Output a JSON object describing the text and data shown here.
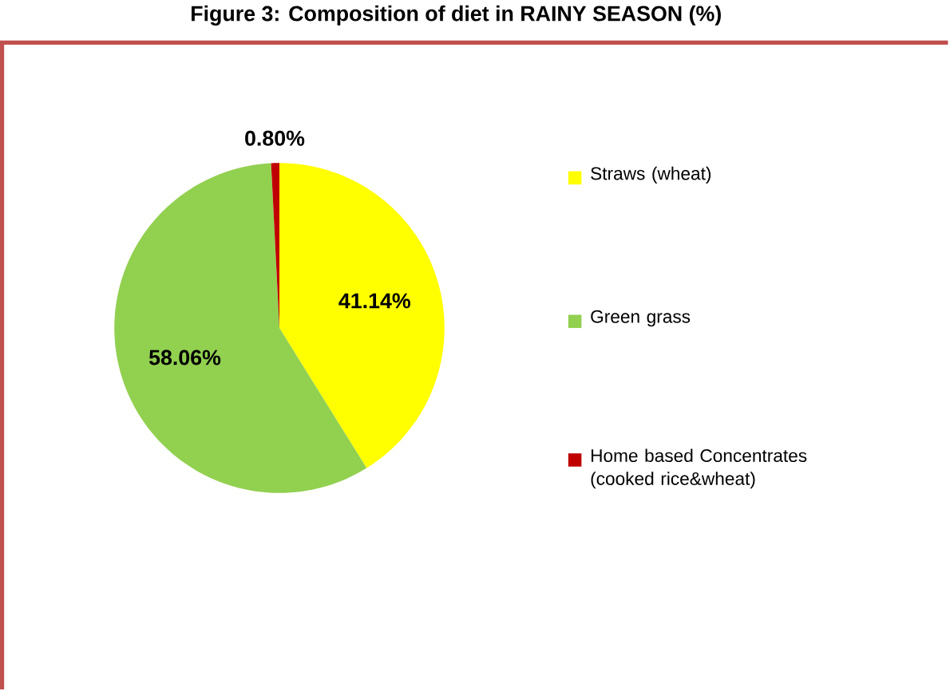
{
  "chart_data": {
    "type": "pie",
    "title": "Figure 3: Composition of diet in RAINY SEASON (%)",
    "categories": [
      "Straws (wheat)",
      "Green grass",
      "Home based Concentrates (cooked rice&wheat)"
    ],
    "values": [
      41.14,
      58.06,
      0.8
    ],
    "colors": [
      "#ffff00",
      "#92d050",
      "#c00000"
    ],
    "value_labels": [
      "41.14%",
      "58.06%",
      "0.80%"
    ],
    "legend": "right"
  }
}
